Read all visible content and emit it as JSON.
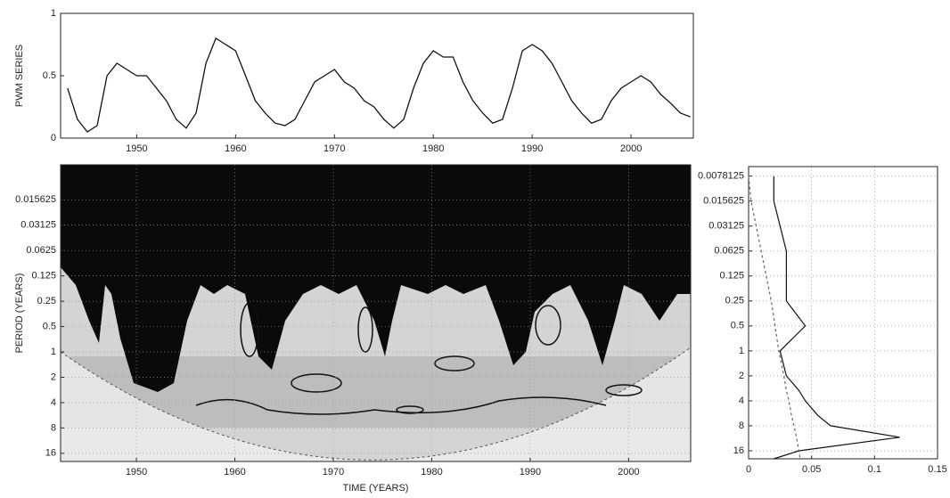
{
  "chart_data": [
    {
      "type": "line",
      "ylabel": "PWM SERIES",
      "x": [
        1943,
        1944,
        1945,
        1946,
        1947,
        1948,
        1949,
        1950,
        1951,
        1952,
        1953,
        1954,
        1955,
        1956,
        1957,
        1958,
        1959,
        1960,
        1961,
        1962,
        1963,
        1964,
        1965,
        1966,
        1967,
        1968,
        1969,
        1970,
        1971,
        1972,
        1973,
        1974,
        1975,
        1976,
        1977,
        1978,
        1979,
        1980,
        1981,
        1982,
        1983,
        1984,
        1985,
        1986,
        1987,
        1988,
        1989,
        1990,
        1991,
        1992,
        1993,
        1994,
        1995,
        1996,
        1997,
        1998,
        1999,
        2000,
        2001,
        2002,
        2003,
        2004,
        2005,
        2006
      ],
      "values": [
        0.4,
        0.15,
        0.05,
        0.1,
        0.5,
        0.6,
        0.55,
        0.5,
        0.5,
        0.4,
        0.3,
        0.15,
        0.08,
        0.2,
        0.6,
        0.8,
        0.75,
        0.7,
        0.5,
        0.3,
        0.2,
        0.12,
        0.1,
        0.15,
        0.3,
        0.45,
        0.5,
        0.55,
        0.45,
        0.4,
        0.3,
        0.25,
        0.15,
        0.08,
        0.15,
        0.4,
        0.6,
        0.7,
        0.65,
        0.65,
        0.45,
        0.3,
        0.2,
        0.12,
        0.15,
        0.4,
        0.7,
        0.75,
        0.7,
        0.6,
        0.45,
        0.3,
        0.2,
        0.12,
        0.15,
        0.3,
        0.4,
        0.45,
        0.5,
        0.45,
        0.35,
        0.28,
        0.2,
        0.17
      ],
      "color": "#111111",
      "xlim": [
        1942.3,
        2006.3
      ],
      "ylim": [
        0,
        1
      ],
      "xticks": [
        1950,
        1960,
        1970,
        1980,
        1990,
        2000
      ],
      "yticks": [
        0,
        0.5,
        1
      ]
    },
    {
      "type": "wavelet",
      "xlabel": "TIME (YEARS)",
      "ylabel": "PERIOD (YEARS)",
      "xlim": [
        1942.3,
        2006.3
      ],
      "ylim": [
        0.006,
        20
      ],
      "yscale": "log",
      "y_inverted": true,
      "xticks": [
        1950,
        1960,
        1970,
        1980,
        1990,
        2000
      ],
      "yticks": [
        0.015625,
        0.03125,
        0.0625,
        0.125,
        0.25,
        0.5,
        1,
        2,
        4,
        8,
        16
      ],
      "grid": true
    },
    {
      "type": "spectrum",
      "y": [
        0.0078125,
        0.015625,
        0.03125,
        0.0625,
        0.125,
        0.25,
        0.5,
        1,
        2,
        3,
        4,
        6,
        8,
        11,
        16,
        20
      ],
      "series": [
        {
          "color": "#111111",
          "linestyle": "solid",
          "values": [
            0.02,
            0.02,
            0.025,
            0.03,
            0.03,
            0.03,
            0.045,
            0.025,
            0.03,
            0.04,
            0.045,
            0.055,
            0.065,
            0.12,
            0.04,
            0.02
          ]
        },
        {
          "color": "#666666",
          "linestyle": "dashed",
          "values": [
            0,
            0.002,
            0.006,
            0.01,
            0.014,
            0.018,
            0.021,
            0.024,
            0.028,
            0.03,
            0.032,
            0.034,
            0.036,
            0.038,
            0.04,
            0.041
          ]
        }
      ],
      "xlim": [
        0,
        0.15
      ],
      "ylim": [
        0.006,
        20
      ],
      "yscale": "log",
      "y_inverted": true,
      "xticks": [
        0,
        0.05,
        0.1,
        0.15
      ],
      "yticks": [
        0.0078125,
        0.015625,
        0.03125,
        0.0625,
        0.125,
        0.25,
        0.5,
        1,
        2,
        4,
        8,
        16
      ],
      "grid": true
    }
  ]
}
